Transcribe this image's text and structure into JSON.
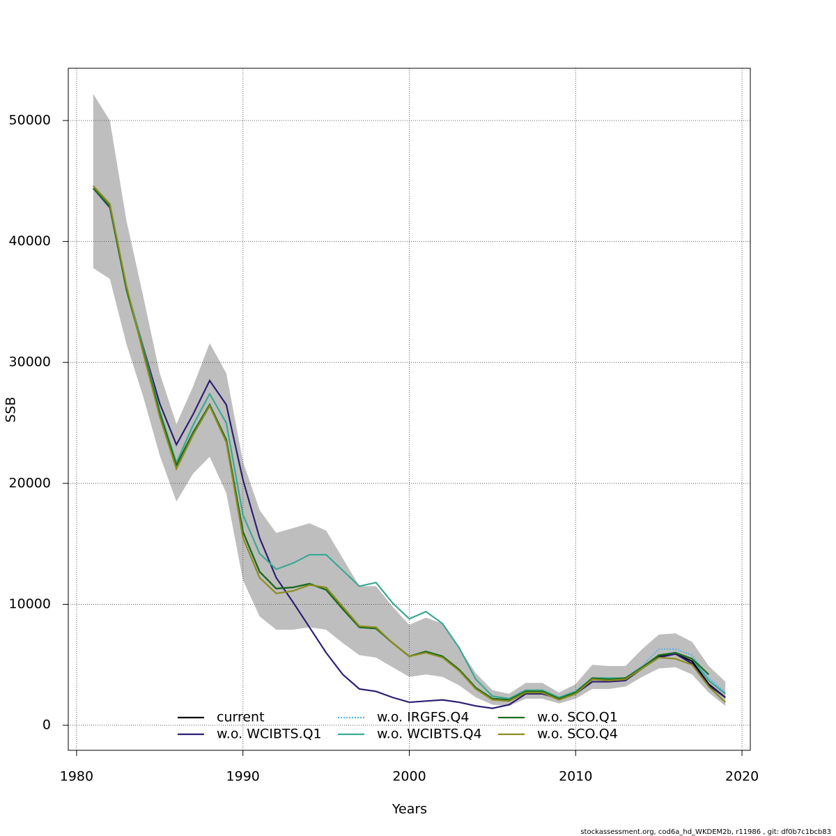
{
  "chart_data": {
    "type": "line",
    "xlabel": "Years",
    "ylabel": "SSB",
    "footnote": "stockassessment.org, cod6a_hd_WKDEM2b, r11986 , git: df0b7c1bcb83",
    "x": [
      1981,
      1982,
      1983,
      1984,
      1985,
      1986,
      1987,
      1988,
      1989,
      1990,
      1991,
      1992,
      1993,
      1994,
      1995,
      1996,
      1997,
      1998,
      1999,
      2000,
      2001,
      2002,
      2003,
      2004,
      2005,
      2006,
      2007,
      2008,
      2009,
      2010,
      2011,
      2012,
      2013,
      2014,
      2015,
      2016,
      2017,
      2018,
      2019
    ],
    "xlim": [
      1979.5,
      2020.5
    ],
    "ylim": [
      -2070,
      54320
    ],
    "xticks": [
      1980,
      1990,
      2000,
      2010,
      2020
    ],
    "yticks": [
      0,
      10000,
      20000,
      30000,
      40000,
      50000
    ],
    "grid": true,
    "legend_position": "bottom",
    "band": {
      "color": "#bebebe",
      "lower": [
        37800,
        36900,
        31500,
        27200,
        22300,
        18500,
        20800,
        22200,
        19200,
        12000,
        9000,
        7900,
        7900,
        8100,
        7900,
        6800,
        5800,
        5600,
        4800,
        4000,
        4200,
        4000,
        3300,
        2300,
        1700,
        1600,
        2200,
        2200,
        1800,
        2200,
        3000,
        3000,
        3200,
        4000,
        4700,
        4800,
        4200,
        2700,
        1600
      ],
      "upper": [
        52200,
        50000,
        41700,
        35500,
        29100,
        24900,
        28000,
        31600,
        29100,
        21800,
        17800,
        15900,
        16300,
        16700,
        16100,
        13800,
        11500,
        11500,
        9800,
        8300,
        8900,
        8400,
        6400,
        4300,
        2900,
        2600,
        3500,
        3500,
        2700,
        3400,
        5000,
        4900,
        4900,
        6300,
        7500,
        7600,
        6900,
        4900,
        3600
      ]
    },
    "series": [
      {
        "name": "current",
        "color": "#000000",
        "dash": "solid",
        "values": [
          44400,
          42900,
          36000,
          31000,
          25800,
          21500,
          24200,
          26500,
          23600,
          16000,
          12700,
          11300,
          11400,
          11700,
          11200,
          9600,
          8100,
          8000,
          6800,
          5700,
          6100,
          5700,
          4600,
          3100,
          2200,
          2100,
          2800,
          2800,
          2200,
          2700,
          3800,
          3800,
          3900,
          4800,
          5700,
          5900,
          5300,
          3400,
          2300
        ]
      },
      {
        "name": "w.o. WCIBTS.Q1",
        "color": "#2d1e73",
        "dash": "solid",
        "values": [
          44400,
          42800,
          36100,
          31300,
          26600,
          23200,
          25700,
          28500,
          26500,
          20300,
          15500,
          12200,
          10200,
          8100,
          6000,
          4200,
          3000,
          2800,
          2300,
          1900,
          2000,
          2100,
          1900,
          1600,
          1400,
          1700,
          2600,
          2600,
          2200,
          2600,
          3600,
          3600,
          3700,
          4700,
          5600,
          5900,
          5100,
          3300,
          2300
        ]
      },
      {
        "name": "w.o. IRGFS.Q4",
        "color": "#56b4e9",
        "dash": "dotted",
        "values": [
          44400,
          42900,
          36000,
          31000,
          25800,
          21500,
          24200,
          26500,
          23600,
          16000,
          12700,
          11300,
          11400,
          11700,
          11200,
          9600,
          8100,
          8000,
          6800,
          5700,
          6100,
          5700,
          4600,
          3100,
          2200,
          2100,
          2800,
          2800,
          2200,
          2700,
          3800,
          3800,
          3900,
          4900,
          6300,
          6300,
          5800,
          3900,
          2700
        ]
      },
      {
        "name": "w.o. WCIBTS.Q4",
        "color": "#3aa992",
        "dash": "solid",
        "values": [
          44400,
          42900,
          36200,
          31200,
          26000,
          21700,
          24800,
          27400,
          25000,
          17400,
          14200,
          12900,
          13400,
          14100,
          14100,
          12800,
          11500,
          11800,
          10100,
          8800,
          9400,
          8400,
          6400,
          3800,
          2400,
          2200,
          2900,
          2900,
          2300,
          2800,
          3900,
          3900,
          3900,
          4800,
          5800,
          6000,
          5500,
          3700,
          2600
        ]
      },
      {
        "name": "w.o. SCO.Q1",
        "color": "#1b6e1b",
        "dash": "solid",
        "values": [
          44400,
          42900,
          36000,
          31000,
          25800,
          21500,
          24200,
          26500,
          23600,
          16000,
          12700,
          11300,
          11400,
          11700,
          11200,
          9600,
          8100,
          8000,
          6800,
          5700,
          6100,
          5700,
          4600,
          3100,
          2200,
          2100,
          2800,
          2800,
          2200,
          2700,
          3900,
          3800,
          3900,
          4800,
          5800,
          6000,
          5500,
          4200,
          null
        ]
      },
      {
        "name": "w.o. SCO.Q4",
        "color": "#8c8c1e",
        "dash": "solid",
        "values": [
          44600,
          43100,
          36300,
          30800,
          25500,
          21200,
          24000,
          26400,
          23400,
          15500,
          12200,
          10900,
          11100,
          11600,
          11400,
          9800,
          8200,
          8100,
          6800,
          5700,
          6000,
          5600,
          4500,
          3000,
          2100,
          2000,
          2700,
          2700,
          2100,
          2600,
          3800,
          3700,
          3800,
          4700,
          5600,
          5500,
          5000,
          3200,
          1900
        ]
      }
    ]
  }
}
